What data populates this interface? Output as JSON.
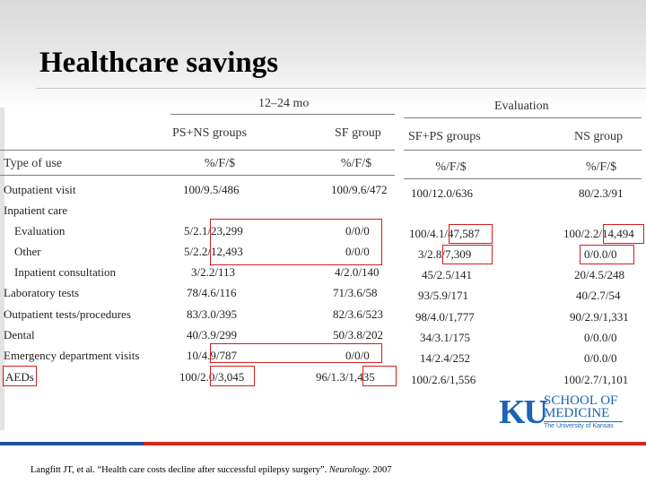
{
  "title": "Healthcare savings",
  "headers": {
    "period": "12–24 mo",
    "evaluation": "Evaluation",
    "ps_ns": "PS+NS groups",
    "sf": "SF group",
    "sf_ps": "SF+PS groups",
    "ns": "NS group",
    "type_of_use": "Type of use",
    "units": "%/F/$"
  },
  "rows": [
    {
      "label": "Outpatient visit",
      "ps_ns": "100/9.5/486",
      "sf": "100/9.6/472",
      "sf_ps": "100/12.0/636",
      "ns": "80/2.3/91"
    },
    {
      "label": "Inpatient care",
      "ps_ns": "",
      "sf": "",
      "sf_ps": "",
      "ns": ""
    },
    {
      "label": "Evaluation",
      "ps_ns": "5/2.1/23,299",
      "sf": "0/0/0",
      "sf_ps": "100/4.1/47,587",
      "ns": "100/2.2/14,494"
    },
    {
      "label": "Other",
      "ps_ns": "5/2.2/12,493",
      "sf": "0/0/0",
      "sf_ps": "3/2.8/7,309",
      "ns": "0/0.0/0"
    },
    {
      "label": "Inpatient consultation",
      "ps_ns": "3/2.2/113",
      "sf": "4/2.0/140",
      "sf_ps": "45/2.5/141",
      "ns": "20/4.5/248"
    },
    {
      "label": "Laboratory tests",
      "ps_ns": "78/4.6/116",
      "sf": "71/3.6/58",
      "sf_ps": "93/5.9/171",
      "ns": "40/2.7/54"
    },
    {
      "label": "Outpatient tests/procedures",
      "ps_ns": "83/3.0/395",
      "sf": "82/3.6/523",
      "sf_ps": "98/4.0/1,777",
      "ns": "90/2.9/1,331"
    },
    {
      "label": "Dental",
      "ps_ns": "40/3.9/299",
      "sf": "50/3.8/202",
      "sf_ps": "34/3.1/175",
      "ns": "0/0.0/0"
    },
    {
      "label": "Emergency department visits",
      "ps_ns": "10/4.9/787",
      "sf": "0/0/0",
      "sf_ps": "14/2.4/252",
      "ns": "0/0.0/0"
    },
    {
      "label": "AEDs",
      "ps_ns": "100/2.0/3,045",
      "sf": "96/1.3/1,435",
      "sf_ps": "100/2.6/1,556",
      "ns": "100/2.7/1,101"
    }
  ],
  "logo": {
    "mark": "KU",
    "line1": "SCHOOL OF",
    "line2": "MEDICINE",
    "line3": "The University of Kansas"
  },
  "citation": {
    "text": "Langfitt JT, et al. “Health care costs decline after successful epilepsy surgery”. ",
    "journal": "Neurology.",
    "year": " 2007"
  },
  "colors": {
    "highlight_box": "#d21f1f",
    "bar_blue": "#1e4fa0",
    "bar_red": "#d7261e",
    "logo_blue": "#1b63b5"
  }
}
